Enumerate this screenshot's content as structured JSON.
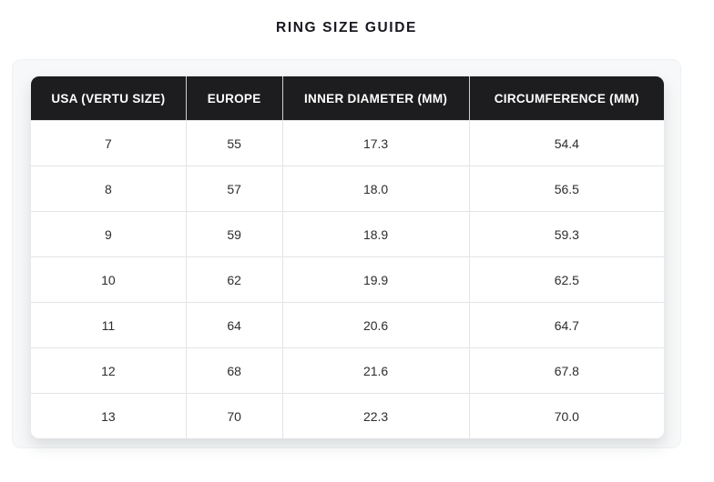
{
  "page": {
    "title": "RING SIZE GUIDE"
  },
  "chart_data": {
    "type": "table",
    "title": "RING SIZE GUIDE",
    "columns": [
      "USA (VERTU SIZE)",
      "EUROPE",
      "INNER DIAMETER (MM)",
      "CIRCUMFERENCE (MM)"
    ],
    "rows": [
      [
        "7",
        "55",
        "17.3",
        "54.4"
      ],
      [
        "8",
        "57",
        "18.0",
        "56.5"
      ],
      [
        "9",
        "59",
        "18.9",
        "59.3"
      ],
      [
        "10",
        "62",
        "19.9",
        "62.5"
      ],
      [
        "11",
        "64",
        "20.6",
        "64.7"
      ],
      [
        "12",
        "68",
        "21.6",
        "67.8"
      ],
      [
        "13",
        "70",
        "22.3",
        "70.0"
      ]
    ]
  },
  "colors": {
    "header_bg": "#1d1d1f",
    "header_text": "#ffffff",
    "card_bg": "#f7f8f9",
    "row_border": "#e4e4e6",
    "title_text": "#17171f",
    "cell_text": "#2d2d2d"
  }
}
